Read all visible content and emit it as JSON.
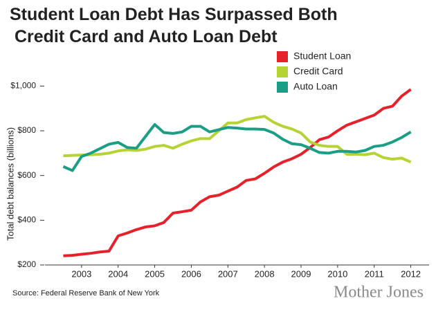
{
  "chart_data": {
    "type": "line",
    "title": "Student Loan Debt Has Surpassed Both Credit Card and Auto Loan Debt",
    "y_label": "Total debt balances (billions)",
    "source": "Source: Federal Reserve Bank of New York",
    "brand": "Mother Jones",
    "x": [
      2003,
      2003.25,
      2003.5,
      2003.75,
      2004,
      2004.25,
      2004.5,
      2004.75,
      2005,
      2005.25,
      2005.5,
      2005.75,
      2006,
      2006.25,
      2006.5,
      2006.75,
      2007,
      2007.25,
      2007.5,
      2007.75,
      2008,
      2008.25,
      2008.5,
      2008.75,
      2009,
      2009.25,
      2009.5,
      2009.75,
      2010,
      2010.25,
      2010.5,
      2010.75,
      2011,
      2011.25,
      2011.5,
      2011.75,
      2012,
      2012.25,
      2012.5
    ],
    "series": [
      {
        "name": "Student Loan",
        "color": "#e5222b",
        "values": [
          241,
          243,
          248,
          252,
          258,
          262,
          330,
          343,
          358,
          370,
          375,
          390,
          432,
          438,
          445,
          482,
          505,
          512,
          530,
          548,
          578,
          585,
          610,
          638,
          660,
          675,
          695,
          725,
          760,
          772,
          800,
          825,
          840,
          855,
          870,
          900,
          910,
          955,
          985
        ]
      },
      {
        "name": "Credit Card",
        "color": "#b5d334",
        "values": [
          688,
          690,
          692,
          693,
          695,
          700,
          710,
          715,
          712,
          718,
          730,
          735,
          722,
          740,
          755,
          765,
          765,
          800,
          835,
          835,
          850,
          858,
          865,
          838,
          820,
          808,
          790,
          750,
          735,
          730,
          730,
          695,
          695,
          693,
          700,
          680,
          673,
          678,
          660
        ]
      },
      {
        "name": "Auto Loan",
        "color": "#1a9e86",
        "values": [
          640,
          622,
          685,
          700,
          720,
          740,
          748,
          725,
          722,
          775,
          828,
          792,
          788,
          795,
          820,
          820,
          795,
          805,
          815,
          812,
          808,
          808,
          806,
          790,
          762,
          742,
          738,
          722,
          703,
          700,
          708,
          708,
          705,
          712,
          730,
          735,
          750,
          770,
          795
        ]
      }
    ],
    "xlim": [
      2002.5,
      2013
    ],
    "xticks": [
      {
        "value": 2003.5,
        "label": "2003"
      },
      {
        "value": 2004.5,
        "label": "2004"
      },
      {
        "value": 2005.5,
        "label": "2005"
      },
      {
        "value": 2006.5,
        "label": "2006"
      },
      {
        "value": 2007.5,
        "label": "2007"
      },
      {
        "value": 2008.5,
        "label": "2008"
      },
      {
        "value": 2009.5,
        "label": "2009"
      },
      {
        "value": 2010.5,
        "label": "2010"
      },
      {
        "value": 2011.5,
        "label": "2011"
      },
      {
        "value": 2012.5,
        "label": "2012"
      }
    ],
    "ylim": [
      200,
      1060
    ],
    "yticks": [
      {
        "value": 200,
        "label": "$200"
      },
      {
        "value": 400,
        "label": "$400"
      },
      {
        "value": 600,
        "label": "$600"
      },
      {
        "value": 800,
        "label": "$800"
      },
      {
        "value": 1000,
        "label": "$1,000"
      }
    ]
  }
}
